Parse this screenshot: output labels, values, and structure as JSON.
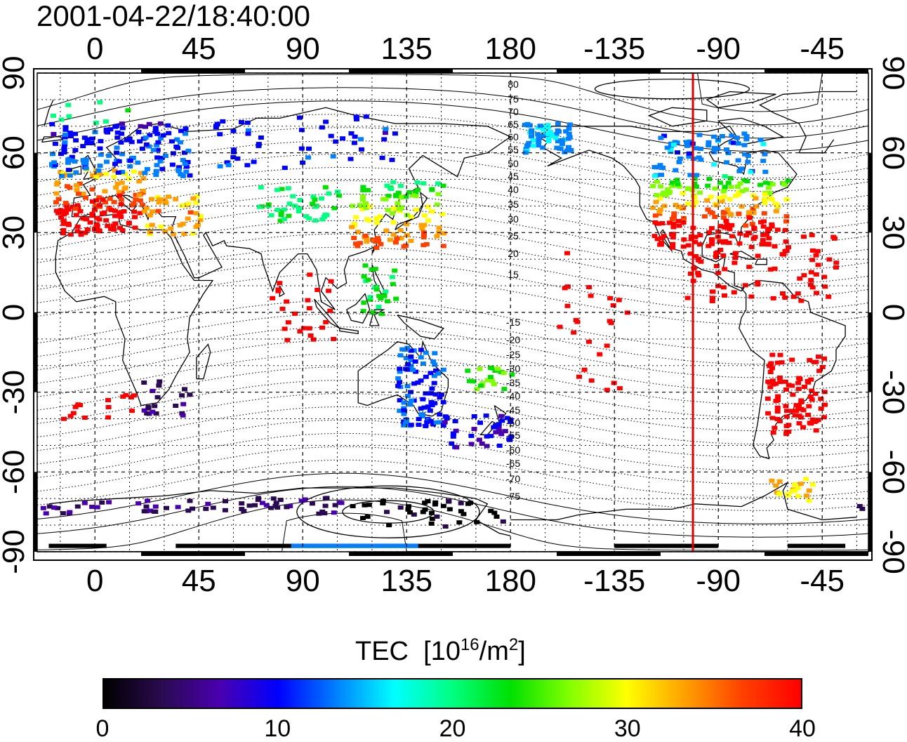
{
  "timestamp": "2001-04-22/18:40:00",
  "top_lon_ticks": [
    "0",
    "45",
    "90",
    "135",
    "180",
    "-135",
    "-90",
    "-45"
  ],
  "bottom_lon_ticks": [
    "0",
    "45",
    "90",
    "135",
    "180",
    "-135",
    "-90",
    "-45"
  ],
  "left_lat_ticks": [
    "90",
    "60",
    "30",
    "0",
    "-30",
    "-60",
    "-90"
  ],
  "right_lat_ticks": [
    "90",
    "60",
    "30",
    "0",
    "-30",
    "-60",
    "-90"
  ],
  "contour_labels_north": [
    "80",
    "75",
    "70",
    "65",
    "60",
    "55",
    "50",
    "45",
    "40",
    "35",
    "30",
    "25",
    "20",
    "15"
  ],
  "contour_labels_south": [
    "-15",
    "-20",
    "-25",
    "-30",
    "-35",
    "-40",
    "-45",
    "-50",
    "-55",
    "-60",
    "-65",
    "-70",
    "-75"
  ],
  "terminator_line": {
    "longitude": -101,
    "color": "#e00000"
  },
  "colorbar": {
    "title": "TEC",
    "unit_base": "[10",
    "unit_exp": "16",
    "unit_mid": "/m",
    "unit_exp2": "2",
    "unit_end": "]",
    "ticks": [
      "0",
      "10",
      "20",
      "30",
      "40"
    ],
    "range": [
      0,
      40
    ],
    "colors": [
      "#000000",
      "#2a0a50",
      "#4a00b0",
      "#0000ff",
      "#0080ff",
      "#00ffff",
      "#00ff80",
      "#00e000",
      "#80ff00",
      "#ffff00",
      "#ffa000",
      "#ff4000",
      "#ff0000"
    ]
  }
}
